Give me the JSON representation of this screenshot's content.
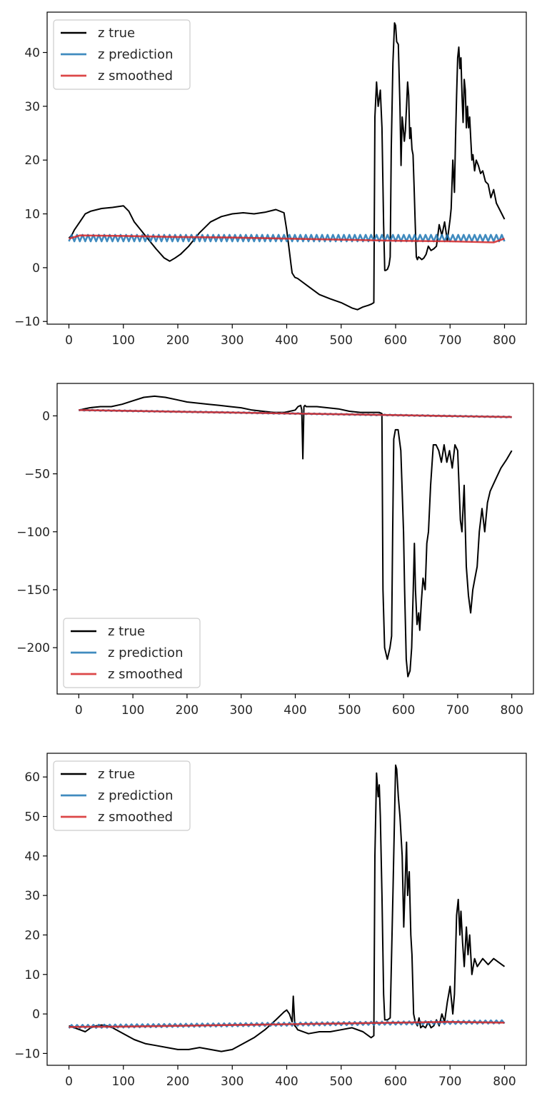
{
  "chart_data": [
    {
      "type": "line",
      "legend": "top-left",
      "xlim": [
        -40,
        840
      ],
      "ylim": [
        -10.5,
        47.5
      ],
      "xticks": [
        0,
        100,
        200,
        300,
        400,
        500,
        600,
        700,
        800
      ],
      "yticks": [
        -10,
        0,
        10,
        20,
        30,
        40
      ],
      "tick_labels_x": [
        "0",
        "100",
        "200",
        "300",
        "400",
        "500",
        "600",
        "700",
        "800"
      ],
      "tick_labels_y": [
        "−10",
        "0",
        "10",
        "20",
        "30",
        "40"
      ],
      "series": [
        {
          "name": "z true",
          "color": "#000000",
          "x": [
            0,
            5,
            10,
            20,
            30,
            40,
            60,
            80,
            100,
            110,
            120,
            140,
            160,
            175,
            185,
            195,
            205,
            220,
            240,
            260,
            280,
            300,
            320,
            340,
            360,
            380,
            395,
            400,
            405,
            408,
            410,
            415,
            420,
            440,
            460,
            480,
            500,
            520,
            530,
            540,
            550,
            555,
            560,
            562,
            565,
            568,
            572,
            575,
            578,
            580,
            582,
            585,
            588,
            590,
            592,
            595,
            598,
            600,
            602,
            605,
            608,
            610,
            612,
            614,
            616,
            618,
            620,
            622,
            624,
            626,
            628,
            630,
            632,
            634,
            636,
            638,
            640,
            642,
            645,
            648,
            652,
            656,
            660,
            665,
            670,
            675,
            680,
            685,
            690,
            695,
            700,
            702,
            705,
            708,
            710,
            712,
            714,
            716,
            718,
            720,
            722,
            724,
            726,
            728,
            730,
            732,
            734,
            736,
            738,
            740,
            742,
            745,
            748,
            752,
            756,
            760,
            765,
            770,
            775,
            780,
            785,
            790,
            795,
            800
          ],
          "y": [
            5.5,
            6,
            7,
            8.5,
            10,
            10.5,
            11,
            11.2,
            11.5,
            10.5,
            8.5,
            6,
            3.5,
            1.8,
            1.2,
            1.8,
            2.5,
            4,
            6.5,
            8.5,
            9.5,
            10,
            10.2,
            10,
            10.3,
            10.8,
            10.2,
            7,
            3,
            0.5,
            -1,
            -1.8,
            -2,
            -3.5,
            -5,
            -5.8,
            -6.5,
            -7.5,
            -7.8,
            -7.3,
            -7,
            -6.8,
            -6.5,
            28,
            34.5,
            30,
            33,
            26,
            8,
            -0.5,
            -0.5,
            -0.3,
            0.5,
            2,
            22,
            38,
            45.5,
            45,
            42,
            41.5,
            30,
            19,
            28,
            26,
            23.5,
            25.5,
            30,
            34.5,
            32,
            24,
            26,
            22,
            21,
            15,
            8,
            2,
            1.5,
            2,
            1.8,
            1.5,
            1.8,
            2.5,
            4,
            3.2,
            3.5,
            4,
            8,
            6,
            8.5,
            5,
            9,
            11,
            20,
            14,
            24,
            32,
            39,
            41,
            37,
            39,
            32,
            27,
            35,
            33,
            26,
            30,
            26,
            28,
            24,
            20,
            21,
            18,
            20,
            19,
            17.5,
            18,
            16,
            15.5,
            13,
            14.5,
            12,
            11,
            10,
            9
          ]
        },
        {
          "name": "z prediction",
          "color": "#1f77b4",
          "x": [
            0,
            800
          ],
          "y": [
            5.5,
            5.5
          ],
          "zigzag": 1.2,
          "zigzag_period": 10
        },
        {
          "name": "z smoothed",
          "color": "#d62728",
          "x": [
            0,
            20,
            100,
            200,
            300,
            400,
            500,
            600,
            700,
            780,
            800
          ],
          "y": [
            5.4,
            6.0,
            5.9,
            5.7,
            5.6,
            5.4,
            5.2,
            5.0,
            4.9,
            4.7,
            5.4
          ]
        }
      ]
    },
    {
      "type": "line",
      "legend": "bottom-left",
      "xlim": [
        -40,
        840
      ],
      "ylim": [
        -240,
        28
      ],
      "xticks": [
        0,
        100,
        200,
        300,
        400,
        500,
        600,
        700,
        800
      ],
      "yticks": [
        -200,
        -150,
        -100,
        -50,
        0
      ],
      "tick_labels_x": [
        "0",
        "100",
        "200",
        "300",
        "400",
        "500",
        "600",
        "700",
        "800"
      ],
      "tick_labels_y": [
        "−200",
        "−150",
        "−100",
        "−50",
        "0"
      ],
      "series": [
        {
          "name": "z true",
          "color": "#000000",
          "x": [
            0,
            20,
            40,
            60,
            80,
            100,
            120,
            140,
            160,
            180,
            200,
            220,
            240,
            260,
            280,
            300,
            320,
            340,
            360,
            380,
            400,
            405,
            410,
            412,
            414,
            416,
            418,
            420,
            440,
            460,
            480,
            500,
            520,
            540,
            555,
            560,
            562,
            565,
            570,
            575,
            578,
            580,
            582,
            585,
            590,
            595,
            600,
            602,
            605,
            608,
            612,
            615,
            618,
            620,
            622,
            625,
            628,
            630,
            633,
            636,
            640,
            643,
            646,
            650,
            655,
            660,
            665,
            670,
            675,
            680,
            685,
            690,
            695,
            700,
            705,
            708,
            712,
            716,
            720,
            724,
            728,
            732,
            736,
            740,
            745,
            750,
            755,
            760,
            770,
            780,
            790,
            800
          ],
          "y": [
            5,
            7,
            8,
            8,
            10,
            13,
            16,
            17,
            16,
            14,
            12,
            11,
            10,
            9,
            8,
            7,
            5,
            4,
            3,
            3,
            5,
            8,
            9,
            5,
            -37,
            8,
            9,
            8,
            8,
            7,
            6,
            4,
            3,
            3,
            3,
            2,
            -150,
            -200,
            -210,
            -200,
            -190,
            -100,
            -20,
            -12,
            -12,
            -30,
            -100,
            -150,
            -210,
            -225,
            -220,
            -200,
            -150,
            -110,
            -150,
            -180,
            -170,
            -185,
            -160,
            -140,
            -150,
            -110,
            -100,
            -60,
            -25,
            -25,
            -30,
            -40,
            -25,
            -40,
            -30,
            -45,
            -25,
            -30,
            -90,
            -100,
            -60,
            -130,
            -155,
            -170,
            -150,
            -140,
            -130,
            -100,
            -80,
            -100,
            -75,
            -65,
            -55,
            -45,
            -38,
            -30
          ]
        },
        {
          "name": "z prediction",
          "color": "#1f77b4",
          "x": [
            0,
            800
          ],
          "y": [
            5,
            -1
          ],
          "zigzag": 0.8,
          "zigzag_period": 10
        },
        {
          "name": "z smoothed",
          "color": "#d62728",
          "x": [
            0,
            200,
            400,
            600,
            800
          ],
          "y": [
            5,
            3.5,
            2,
            0.5,
            -1
          ]
        }
      ]
    },
    {
      "type": "line",
      "legend": "top-left",
      "xlim": [
        -40,
        840
      ],
      "ylim": [
        -13,
        66
      ],
      "xticks": [
        0,
        100,
        200,
        300,
        400,
        500,
        600,
        700,
        800
      ],
      "yticks": [
        -10,
        0,
        10,
        20,
        30,
        40,
        50,
        60
      ],
      "tick_labels_x": [
        "0",
        "100",
        "200",
        "300",
        "400",
        "500",
        "600",
        "700",
        "800"
      ],
      "tick_labels_y": [
        "−10",
        "0",
        "10",
        "20",
        "30",
        "40",
        "50",
        "60"
      ],
      "series": [
        {
          "name": "z true",
          "color": "#000000",
          "x": [
            0,
            10,
            20,
            30,
            40,
            50,
            60,
            70,
            80,
            100,
            120,
            140,
            160,
            180,
            200,
            220,
            240,
            260,
            280,
            300,
            320,
            340,
            360,
            380,
            395,
            400,
            405,
            410,
            412,
            415,
            418,
            420,
            440,
            460,
            480,
            500,
            520,
            540,
            555,
            560,
            562,
            565,
            568,
            570,
            572,
            575,
            578,
            580,
            585,
            590,
            595,
            600,
            602,
            605,
            608,
            612,
            615,
            618,
            620,
            622,
            625,
            628,
            630,
            633,
            636,
            640,
            643,
            646,
            650,
            655,
            660,
            665,
            670,
            675,
            680,
            685,
            690,
            695,
            700,
            705,
            708,
            712,
            715,
            718,
            720,
            723,
            726,
            730,
            733,
            736,
            740,
            745,
            750,
            760,
            770,
            780,
            790,
            800
          ],
          "y": [
            -3,
            -3.5,
            -4,
            -4.5,
            -3.5,
            -3,
            -2.8,
            -3,
            -3.5,
            -5,
            -6.5,
            -7.5,
            -8,
            -8.5,
            -9,
            -9,
            -8.5,
            -9,
            -9.5,
            -9,
            -7.5,
            -6,
            -4,
            -1.5,
            0.5,
            1,
            0,
            -2,
            4.5,
            -3,
            -3.5,
            -4,
            -5,
            -4.5,
            -4.5,
            -4,
            -3.5,
            -4.5,
            -6,
            -5.5,
            40,
            61,
            55,
            58,
            50,
            30,
            5,
            -1.5,
            -1.5,
            -1,
            30,
            63,
            62,
            55,
            50,
            40,
            22,
            35,
            43.5,
            30,
            36,
            20,
            15,
            0,
            -2,
            -3,
            -1,
            -3.5,
            -3,
            -3.5,
            -2,
            -3.5,
            -3,
            -1.5,
            -3,
            0,
            -2,
            3,
            7,
            0,
            5,
            25,
            29,
            20,
            26,
            18,
            12,
            22,
            15,
            20,
            10,
            14,
            12,
            14,
            12.5,
            14,
            13,
            12
          ]
        },
        {
          "name": "z prediction",
          "color": "#1f77b4",
          "x": [
            0,
            800
          ],
          "y": [
            -3.2,
            -2.0
          ],
          "zigzag": 0.8,
          "zigzag_period": 10
        },
        {
          "name": "z smoothed",
          "color": "#d62728",
          "x": [
            0,
            100,
            200,
            300,
            400,
            500,
            600,
            700,
            800
          ],
          "y": [
            -3.3,
            -3.2,
            -3.0,
            -2.8,
            -2.6,
            -2.4,
            -2.2,
            -2.0,
            -2.2
          ]
        }
      ]
    }
  ]
}
